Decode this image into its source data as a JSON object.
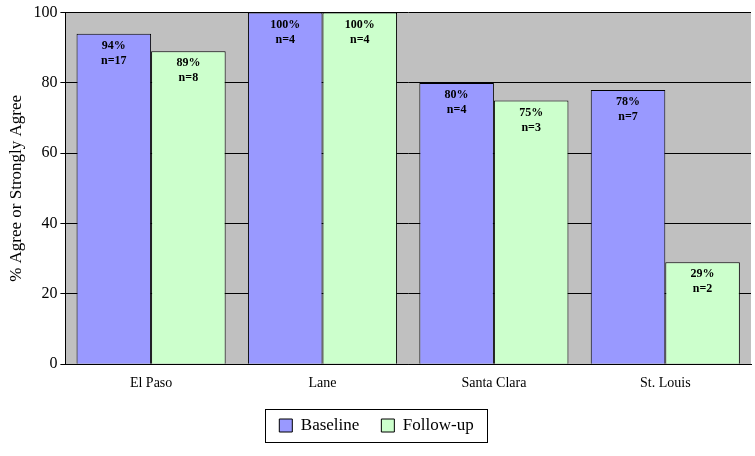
{
  "chart_data": {
    "type": "bar",
    "categories": [
      "El Paso",
      "Lane",
      "Santa Clara",
      "St. Louis"
    ],
    "series": [
      {
        "name": "Baseline",
        "color": "#9999ff",
        "values": [
          94,
          100,
          80,
          78
        ],
        "value_labels": [
          "94%",
          "100%",
          "80%",
          "78%"
        ],
        "count_labels": [
          "n=17",
          "n=4",
          "n=4",
          "n=7"
        ]
      },
      {
        "name": "Follow-up",
        "color": "#ccffcc",
        "values": [
          89,
          100,
          75,
          29
        ],
        "value_labels": [
          "89%",
          "100%",
          "75%",
          "29%"
        ],
        "count_labels": [
          "n=8",
          "n=4",
          "n=3",
          "n=2"
        ]
      }
    ],
    "y_label": "% Agree or Strongly Agree",
    "ylim": [
      0,
      100
    ],
    "yticks": [
      0,
      20,
      40,
      60,
      80,
      100
    ],
    "grid": true,
    "legend": "bottom",
    "data_labels": true
  }
}
